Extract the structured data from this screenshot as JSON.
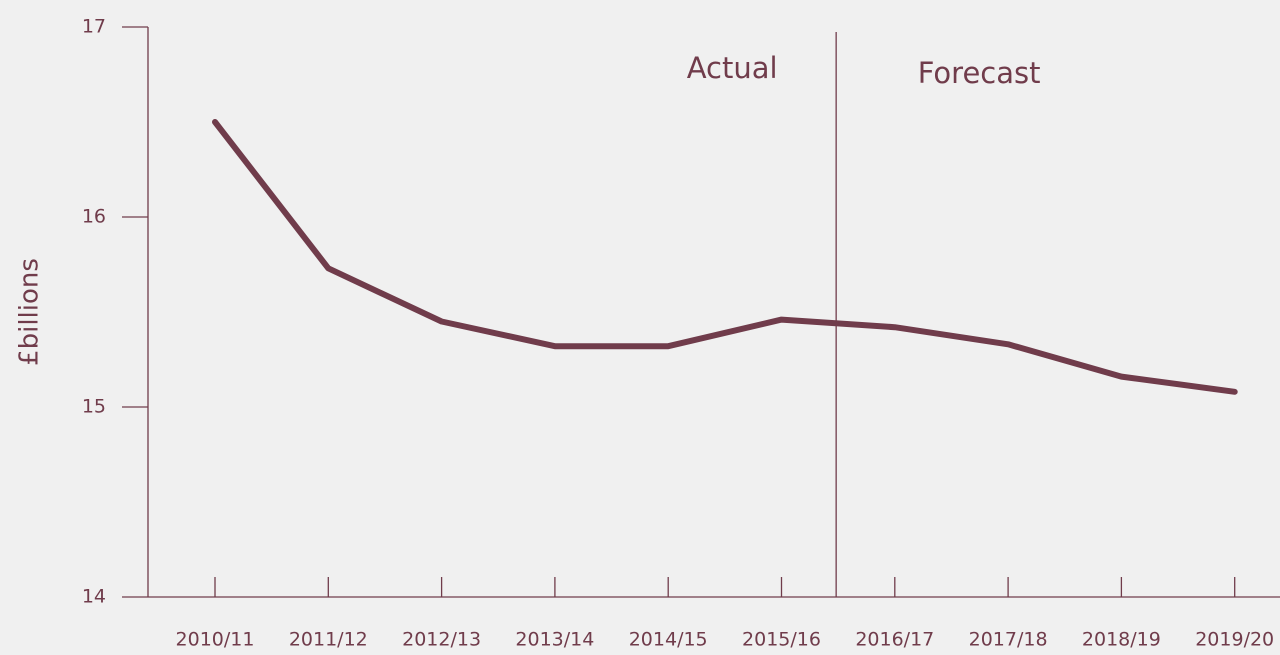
{
  "chart_data": {
    "type": "line",
    "y_label": "£billions",
    "annotations": [
      "Actual",
      "Forecast"
    ],
    "categories": [
      "2010/11",
      "2011/12",
      "2012/13",
      "2013/14",
      "2014/15",
      "2015/16",
      "2016/17",
      "2017/18",
      "2018/19",
      "2019/20"
    ],
    "series": [
      {
        "color": "#703c4b",
        "values": [
          16.5,
          15.73,
          15.45,
          15.32,
          15.32,
          15.46,
          15.42,
          15.33,
          15.16,
          15.08
        ]
      }
    ],
    "ylim": [
      14,
      17
    ],
    "yticks": [
      14,
      15,
      16,
      17
    ]
  }
}
